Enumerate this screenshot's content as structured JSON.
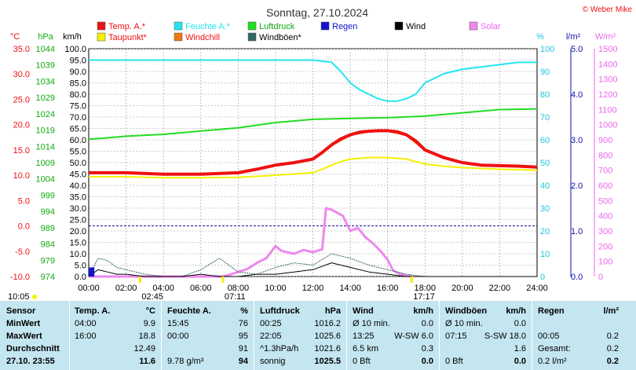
{
  "header": {
    "title": "Sonntag, 27.10.2024",
    "copyright": "© Weber Mike"
  },
  "legend": [
    {
      "label": "Temp. A.*",
      "color": "#ee1111",
      "text_color": "#ee1111"
    },
    {
      "label": "Feuchte A.*",
      "color": "#22e6ee",
      "text_color": "#22e6ee"
    },
    {
      "label": "Luftdruck",
      "color": "#22dd22",
      "text_color": "#11aa11"
    },
    {
      "label": "Regen",
      "color": "#1111cc",
      "text_color": "#1111cc"
    },
    {
      "label": "Wind",
      "color": "#000000",
      "text_color": "#000000"
    },
    {
      "label": "Solar",
      "color": "#ee88ee",
      "text_color": "#ee66ee"
    },
    {
      "label": "Taupunkt*",
      "color": "#f5f000",
      "text_color": "#ee1111"
    },
    {
      "label": "Windchill",
      "color": "#ee7711",
      "text_color": "#ee1111"
    },
    {
      "label": "Windböen*",
      "color": "#336666",
      "text_color": "#000000"
    }
  ],
  "axes": {
    "temp": {
      "unit": "°C",
      "ticks": [
        "35.0",
        "30.0",
        "25.0",
        "20.0",
        "15.0",
        "10.0",
        "5.0",
        "0.0",
        "-5.0",
        "-10.0"
      ],
      "color": "#ee1111"
    },
    "pressure": {
      "unit": "hPa",
      "ticks": [
        "1044",
        "1039",
        "1034",
        "1029",
        "1024",
        "1019",
        "1014",
        "1009",
        "1004",
        "999",
        "994",
        "989",
        "984",
        "979",
        "974"
      ],
      "color": "#11aa11"
    },
    "wind": {
      "unit": "km/h",
      "ticks": [
        "100.0",
        "95.0",
        "90.0",
        "85.0",
        "80.0",
        "75.0",
        "70.0",
        "65.0",
        "60.0",
        "55.0",
        "50.0",
        "45.0",
        "40.0",
        "35.0",
        "30.0",
        "25.0",
        "20.0",
        "15.0",
        "10.0",
        "5.0",
        "0.0"
      ],
      "color": "#000000"
    },
    "humidity": {
      "unit": "%",
      "ticks": [
        "100",
        "90",
        "80",
        "70",
        "60",
        "50",
        "40",
        "30",
        "20",
        "10",
        "0"
      ],
      "color": "#22c6dd"
    },
    "rain": {
      "unit": "l/m²",
      "ticks": [
        "5.0",
        "4.0",
        "3.0",
        "2.0",
        "1.0",
        "0.0"
      ],
      "color": "#1111aa"
    },
    "solar": {
      "unit": "W/m²",
      "ticks": [
        "1500",
        "1400",
        "1300",
        "1200",
        "1100",
        "1000",
        "900",
        "800",
        "700",
        "600",
        "500",
        "400",
        "300",
        "200",
        "100",
        "0"
      ],
      "color": "#ee66ee"
    },
    "time": {
      "ticks": [
        "00:00",
        "02:00",
        "04:00",
        "06:00",
        "08:00",
        "10:00",
        "12:00",
        "14:00",
        "16:00",
        "18:00",
        "20:00",
        "22:00",
        "24:00"
      ]
    }
  },
  "markers": {
    "sunrise": "07:11",
    "sunset": "17:17",
    "moonrise": "02:45",
    "left_time": "10:05"
  },
  "chart_data": {
    "type": "line",
    "title": "Sonntag, 27.10.2024",
    "x_unit": "hours",
    "series": [
      {
        "name": "Temp. A.*",
        "axis": "temp",
        "x": [
          0,
          2,
          4,
          6,
          8,
          9,
          10,
          11,
          12,
          12.5,
          13,
          13.5,
          14,
          14.5,
          15,
          15.5,
          16,
          16.5,
          17,
          17.5,
          18,
          19,
          20,
          21,
          22,
          23,
          24
        ],
        "values": [
          10.5,
          10.5,
          10.2,
          10.2,
          10.5,
          11.2,
          12.0,
          12.5,
          13.2,
          14.5,
          16.0,
          17.2,
          18.0,
          18.5,
          18.7,
          18.8,
          18.8,
          18.6,
          18.0,
          16.8,
          15.0,
          13.5,
          12.5,
          12.0,
          11.9,
          11.8,
          11.6
        ]
      },
      {
        "name": "Taupunkt*",
        "axis": "temp",
        "x": [
          0,
          2,
          4,
          6,
          8,
          10,
          12,
          12.5,
          13,
          13.5,
          14,
          15,
          16,
          17,
          17.5,
          18,
          19,
          20,
          22,
          24
        ],
        "values": [
          9.7,
          9.7,
          9.5,
          9.5,
          9.6,
          10.0,
          10.5,
          11.2,
          12.0,
          12.7,
          13.2,
          13.5,
          13.5,
          13.2,
          12.7,
          12.2,
          11.8,
          11.5,
          11.2,
          11.0
        ]
      },
      {
        "name": "Windchill",
        "axis": "temp",
        "x": [
          0,
          2,
          4,
          6,
          8,
          10,
          12,
          13,
          14,
          15,
          16,
          17,
          18,
          20,
          22,
          24
        ],
        "values": [
          10.4,
          10.4,
          10.1,
          10.1,
          10.4,
          11.9,
          13.1,
          15.9,
          17.9,
          18.6,
          18.7,
          17.9,
          14.9,
          12.4,
          11.8,
          11.5
        ]
      },
      {
        "name": "Feuchte A.*",
        "axis": "humidity",
        "x": [
          0,
          4,
          8,
          12,
          13,
          13.5,
          14,
          14.5,
          15,
          15.5,
          16,
          16.5,
          17,
          17.5,
          18,
          19,
          20,
          21,
          22,
          23,
          24
        ],
        "values": [
          95,
          95,
          95,
          95,
          94,
          90,
          85,
          82,
          80,
          78,
          77,
          77,
          78,
          80,
          85,
          89,
          91,
          92,
          93,
          94,
          94
        ]
      },
      {
        "name": "Luftdruck",
        "axis": "pressure",
        "x": [
          0,
          1,
          2,
          4,
          6,
          8,
          10,
          12,
          14,
          16,
          18,
          20,
          22,
          24
        ],
        "values": [
          1016.2,
          1016.6,
          1017.1,
          1017.7,
          1018.7,
          1019.7,
          1021.3,
          1022.3,
          1022.6,
          1022.8,
          1023.3,
          1024.3,
          1025.3,
          1025.5
        ]
      },
      {
        "name": "Solar",
        "axis": "solar",
        "x": [
          0,
          7.2,
          7.5,
          8,
          8.5,
          9,
          9.5,
          10,
          10.3,
          10.6,
          11,
          11.5,
          12,
          12.5,
          12.7,
          13,
          13.3,
          13.6,
          14,
          14.4,
          14.8,
          15.2,
          15.6,
          16,
          16.3,
          16.6,
          17,
          17.3
        ],
        "values": [
          0,
          0,
          10,
          30,
          50,
          90,
          120,
          200,
          170,
          160,
          150,
          175,
          160,
          180,
          450,
          440,
          420,
          400,
          300,
          320,
          260,
          220,
          170,
          110,
          40,
          20,
          5,
          0
        ]
      },
      {
        "name": "Wind",
        "axis": "wind",
        "x": [
          0,
          0.5,
          1,
          1.5,
          2,
          3,
          4,
          5,
          6,
          7,
          8,
          9,
          10,
          11,
          12,
          13,
          13.5,
          14,
          15,
          16,
          17,
          18,
          19,
          20,
          22,
          24
        ],
        "values": [
          0,
          3,
          2,
          1,
          1,
          0,
          0,
          0,
          1,
          0,
          0,
          1,
          1,
          2,
          3,
          6,
          5,
          4,
          2,
          1,
          0,
          0,
          0,
          0,
          0,
          0
        ]
      },
      {
        "name": "Windböen*",
        "axis": "wind",
        "x": [
          0,
          0.5,
          1,
          1.5,
          2,
          3,
          4,
          5,
          6,
          7,
          8,
          9,
          10,
          11,
          12,
          13,
          13.5,
          14,
          15,
          16,
          17,
          18,
          20,
          22,
          24
        ],
        "values": [
          0,
          8,
          7,
          4,
          3,
          1,
          0,
          0,
          3,
          8,
          2,
          1,
          4,
          6,
          5,
          10,
          9,
          8,
          5,
          3,
          1,
          0,
          0,
          0,
          0
        ]
      },
      {
        "name": "Regen",
        "axis": "rain",
        "x": [
          0,
          0.1,
          0.3
        ],
        "values": [
          0.2,
          0.2,
          0.0
        ]
      }
    ],
    "ylim": {
      "temp": [
        -10,
        35
      ],
      "pressure": [
        974,
        1044
      ],
      "wind": [
        0,
        100
      ],
      "humidity": [
        0,
        100
      ],
      "rain": [
        0,
        5
      ],
      "solar": [
        0,
        1500
      ]
    },
    "xlim": [
      0,
      24
    ],
    "grid": true
  },
  "stats": {
    "headers": [
      "Sensor",
      "Temp. A.",
      "°C",
      "Feuchte A.",
      "%",
      "Luftdruck",
      "hPa",
      "Wind",
      "km/h",
      "Windböen",
      "km/h",
      "Regen",
      "l/m²"
    ],
    "rows": [
      [
        "MinWert",
        "04:00",
        "9.9",
        "15:45",
        "76",
        "00:25",
        "1016.2",
        "Ø 10 min.",
        "0.0",
        "Ø 10 min.",
        "0.0",
        "",
        ""
      ],
      [
        "MaxWert",
        "16:00",
        "18.8",
        "00:00",
        "95",
        "22:05",
        "1025.6",
        "13:25",
        "W-SW 6.0",
        "07:15",
        "S-SW 18.0",
        "00:05",
        "0.2"
      ],
      [
        "Durchschnitt",
        "",
        "12.49",
        "",
        "91",
        "^1.3hPa/h",
        "1021.6",
        "6.5 km",
        "0.3",
        "",
        "1.6",
        "Gesamt:",
        "0.2"
      ],
      [
        "27.10. 23:55",
        "",
        "11.6",
        "9.78 g/m³",
        "94",
        "sonnig",
        "1025.5",
        "0 Bft",
        "0.0",
        "0 Bft",
        "0.0",
        "0.2 l/m²",
        "0.2"
      ]
    ]
  }
}
